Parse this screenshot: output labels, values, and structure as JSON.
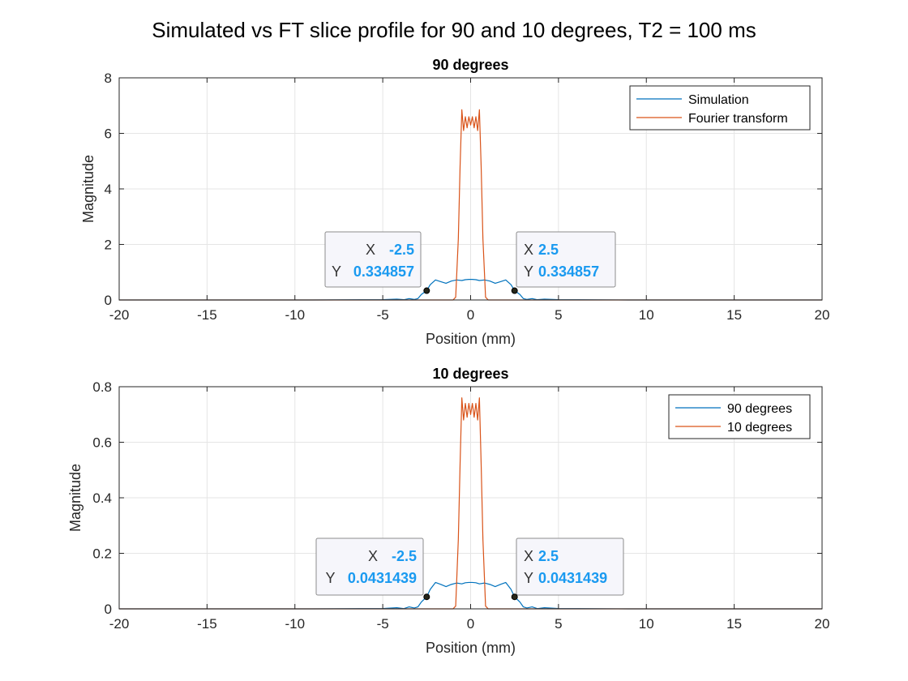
{
  "figure": {
    "suptitle": "Simulated vs FT slice profile for 90 and 10 degrees, T2 = 100 ms"
  },
  "colors": {
    "simulation": "#0072BD",
    "fourier": "#D95319",
    "datatip_value": "#1A9AF0",
    "grid": "#E5E5E5"
  },
  "chart_data": [
    {
      "type": "line",
      "title": "90 degrees",
      "xlabel": "Position (mm)",
      "ylabel": "Magnitude",
      "xlim": [
        -20,
        20
      ],
      "ylim": [
        0,
        8
      ],
      "xticks": [
        -20,
        -15,
        -10,
        -5,
        0,
        5,
        10,
        15,
        20
      ],
      "yticks": [
        0,
        2,
        4,
        6,
        8
      ],
      "grid": true,
      "legend_position": "top-right",
      "series": [
        {
          "name": "Simulation",
          "color": "#0072BD",
          "x": [
            -20,
            -9,
            -5,
            -4.2,
            -3.8,
            -3.5,
            -3.2,
            -3,
            -2.8,
            -2.5,
            -2.3,
            -2,
            -1.7,
            -1.4,
            -1.1,
            -0.8,
            -0.5,
            -0.3,
            -0.1,
            0.1,
            0.3,
            0.5,
            0.8,
            1.1,
            1.4,
            1.7,
            2,
            2.3,
            2.5,
            2.8,
            3,
            3.2,
            3.5,
            3.8,
            4.2,
            5,
            9,
            20
          ],
          "y": [
            0,
            0,
            0.01,
            0.03,
            0.01,
            0.05,
            0.02,
            0.05,
            0.2,
            0.335,
            0.55,
            0.72,
            0.66,
            0.6,
            0.68,
            0.72,
            0.7,
            0.73,
            0.74,
            0.74,
            0.73,
            0.7,
            0.72,
            0.68,
            0.6,
            0.66,
            0.72,
            0.55,
            0.335,
            0.2,
            0.05,
            0.02,
            0.05,
            0.01,
            0.03,
            0.01,
            0,
            0
          ]
        },
        {
          "name": "Fourier transform",
          "color": "#D95319",
          "x": [
            -20,
            -1,
            -0.85,
            -0.7,
            -0.6,
            -0.5,
            -0.4,
            -0.3,
            -0.2,
            -0.1,
            0,
            0.1,
            0.2,
            0.3,
            0.4,
            0.5,
            0.6,
            0.7,
            0.85,
            1,
            20
          ],
          "y": [
            0,
            0,
            0.1,
            2.2,
            4.8,
            6.85,
            6.1,
            6.6,
            6.2,
            6.6,
            6.3,
            6.6,
            6.2,
            6.6,
            6.1,
            6.85,
            4.8,
            2.2,
            0.1,
            0,
            0
          ]
        }
      ],
      "annotations": [
        {
          "x_label": "X",
          "x_value": "-2.5",
          "y_label": "Y",
          "y_value": "0.334857",
          "x": -2.5,
          "y": 0.334857
        },
        {
          "x_label": "X",
          "x_value": "2.5",
          "y_label": "Y",
          "y_value": "0.334857",
          "x": 2.5,
          "y": 0.334857
        }
      ]
    },
    {
      "type": "line",
      "title": "10 degrees",
      "xlabel": "Position (mm)",
      "ylabel": "Magnitude",
      "xlim": [
        -20,
        20
      ],
      "ylim": [
        0,
        0.8
      ],
      "xticks": [
        -20,
        -15,
        -10,
        -5,
        0,
        5,
        10,
        15,
        20
      ],
      "yticks": [
        0,
        0.2,
        0.4,
        0.6,
        0.8
      ],
      "grid": true,
      "legend_position": "top-right",
      "series": [
        {
          "name": "90 degrees",
          "color": "#0072BD",
          "x": [
            -20,
            -9,
            -5,
            -4.2,
            -3.8,
            -3.5,
            -3.2,
            -3,
            -2.8,
            -2.5,
            -2.3,
            -2,
            -1.7,
            -1.4,
            -1.1,
            -0.8,
            -0.5,
            -0.3,
            -0.1,
            0.1,
            0.3,
            0.5,
            0.8,
            1.1,
            1.4,
            1.7,
            2,
            2.3,
            2.5,
            2.8,
            3,
            3.2,
            3.5,
            3.8,
            4.2,
            5,
            9,
            20
          ],
          "y": [
            0,
            0,
            0.001,
            0.004,
            0.001,
            0.007,
            0.003,
            0.007,
            0.025,
            0.0431,
            0.07,
            0.095,
            0.088,
            0.08,
            0.088,
            0.093,
            0.09,
            0.094,
            0.095,
            0.095,
            0.094,
            0.09,
            0.093,
            0.088,
            0.08,
            0.088,
            0.095,
            0.07,
            0.0431,
            0.025,
            0.007,
            0.003,
            0.007,
            0.001,
            0.004,
            0.001,
            0,
            0
          ]
        },
        {
          "name": "10 degrees",
          "color": "#D95319",
          "x": [
            -20,
            -1,
            -0.85,
            -0.7,
            -0.6,
            -0.5,
            -0.4,
            -0.3,
            -0.2,
            -0.1,
            0,
            0.1,
            0.2,
            0.3,
            0.4,
            0.5,
            0.6,
            0.7,
            0.85,
            1,
            20
          ],
          "y": [
            0,
            0,
            0.01,
            0.25,
            0.52,
            0.76,
            0.68,
            0.74,
            0.69,
            0.74,
            0.7,
            0.74,
            0.69,
            0.74,
            0.68,
            0.76,
            0.52,
            0.25,
            0.01,
            0,
            0
          ]
        }
      ],
      "annotations": [
        {
          "x_label": "X",
          "x_value": "-2.5",
          "y_label": "Y",
          "y_value": "0.0431439",
          "x": -2.5,
          "y": 0.0431439
        },
        {
          "x_label": "X",
          "x_value": "2.5",
          "y_label": "Y",
          "y_value": "0.0431439",
          "x": 2.5,
          "y": 0.0431439
        }
      ]
    }
  ]
}
